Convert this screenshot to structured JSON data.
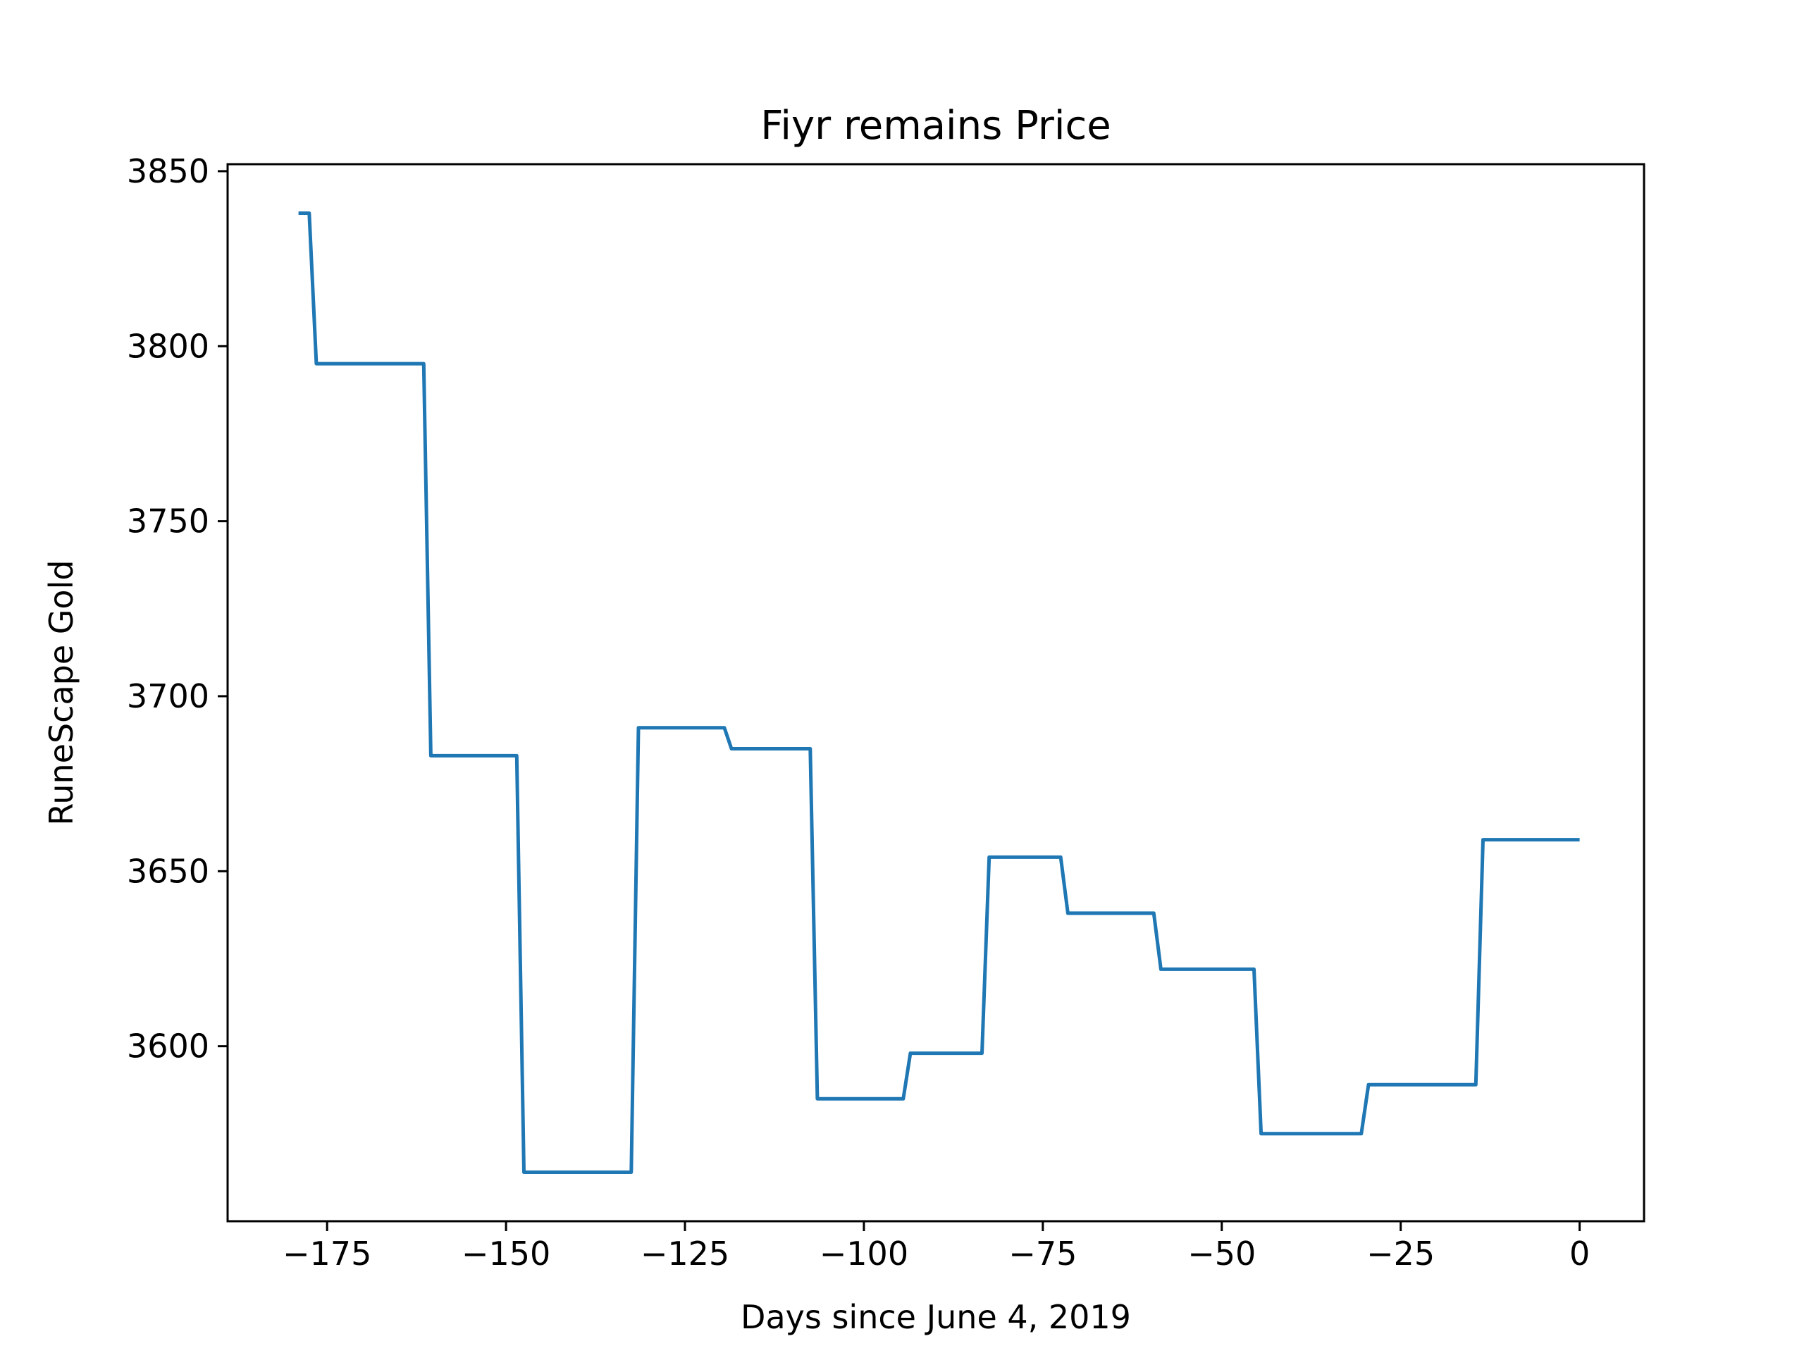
{
  "chart_data": {
    "type": "line",
    "title": "Fiyr remains Price",
    "xlabel": "Days since June 4, 2019",
    "ylabel": "RuneScape Gold",
    "xlim": [
      -188.9,
      9
    ],
    "ylim": [
      3550,
      3852
    ],
    "x_ticks": [
      -175,
      -150,
      -125,
      -100,
      -75,
      -50,
      -25,
      0
    ],
    "x_tick_labels": [
      "−175",
      "−150",
      "−125",
      "−100",
      "−75",
      "−50",
      "−25",
      "0"
    ],
    "y_ticks": [
      3600,
      3650,
      3700,
      3750,
      3800,
      3850
    ],
    "y_tick_labels": [
      "3600",
      "3650",
      "3700",
      "3750",
      "3800",
      "3850"
    ],
    "grid": false,
    "line_color": "#1f77b4",
    "series": [
      {
        "points": [
          [
            -179,
            3838
          ],
          [
            -177.5,
            3838
          ],
          [
            -176.5,
            3795
          ],
          [
            -161.5,
            3795
          ],
          [
            -160.5,
            3683
          ],
          [
            -148.5,
            3683
          ],
          [
            -147.5,
            3564
          ],
          [
            -132.5,
            3564
          ],
          [
            -131.5,
            3691
          ],
          [
            -119.5,
            3691
          ],
          [
            -118.5,
            3685
          ],
          [
            -107.5,
            3685
          ],
          [
            -106.5,
            3585
          ],
          [
            -94.5,
            3585
          ],
          [
            -93.5,
            3598
          ],
          [
            -83.5,
            3598
          ],
          [
            -82.5,
            3654
          ],
          [
            -72.5,
            3654
          ],
          [
            -71.5,
            3638
          ],
          [
            -59.5,
            3638
          ],
          [
            -58.5,
            3622
          ],
          [
            -45.5,
            3622
          ],
          [
            -44.5,
            3575
          ],
          [
            -30.5,
            3575
          ],
          [
            -29.5,
            3589
          ],
          [
            -14.5,
            3589
          ],
          [
            -13.5,
            3659
          ],
          [
            0,
            3659
          ]
        ]
      }
    ]
  }
}
